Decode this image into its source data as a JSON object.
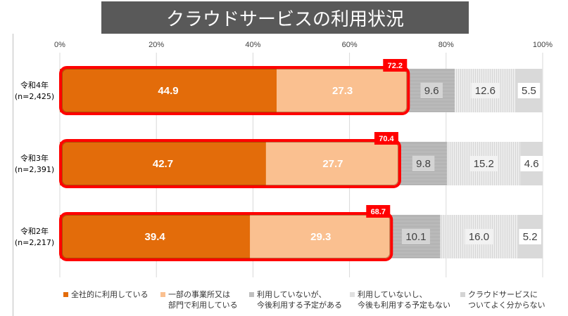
{
  "chart_data": {
    "type": "bar",
    "orientation": "horizontal",
    "stacked": true,
    "title": "クラウドサービスの利用状況",
    "xlabel": "",
    "ylabel": "",
    "xlim": [
      0,
      100
    ],
    "x_ticks": [
      "0%",
      "20%",
      "40%",
      "60%",
      "80%",
      "100%"
    ],
    "grid": true,
    "legend_position": "bottom",
    "categories": [
      {
        "label": "令和4年",
        "sublabel": "(n=2,425)"
      },
      {
        "label": "令和3年",
        "sublabel": "(n=2,391)"
      },
      {
        "label": "令和2年",
        "sublabel": "(n=2,217)"
      }
    ],
    "series": [
      {
        "name": "全社的に利用している",
        "color": "#E36C0A",
        "values": [
          44.9,
          42.7,
          39.4
        ]
      },
      {
        "name": "一部の事業所又は\n部門で利用している",
        "color": "#FAC090",
        "values": [
          27.3,
          27.7,
          29.3
        ]
      },
      {
        "name": "利用していないが、\n今後利用する予定がある",
        "color": "#BFBFBF",
        "pattern": "horizontal-lines",
        "values": [
          9.6,
          9.8,
          10.1
        ]
      },
      {
        "name": "利用していないし、\n今後も利用する予定もない",
        "color": "#E6E6E6",
        "pattern": "vertical-lines",
        "values": [
          12.6,
          15.2,
          16.0
        ]
      },
      {
        "name": "クラウドサービスに\nついてよく分からない",
        "color": "#D9D9D9",
        "values": [
          5.5,
          4.6,
          5.2
        ]
      }
    ],
    "annotations": {
      "highlight": "利用している（合計）",
      "totals": [
        72.2,
        70.4,
        68.7
      ],
      "highlight_color": "#FF0000"
    }
  }
}
